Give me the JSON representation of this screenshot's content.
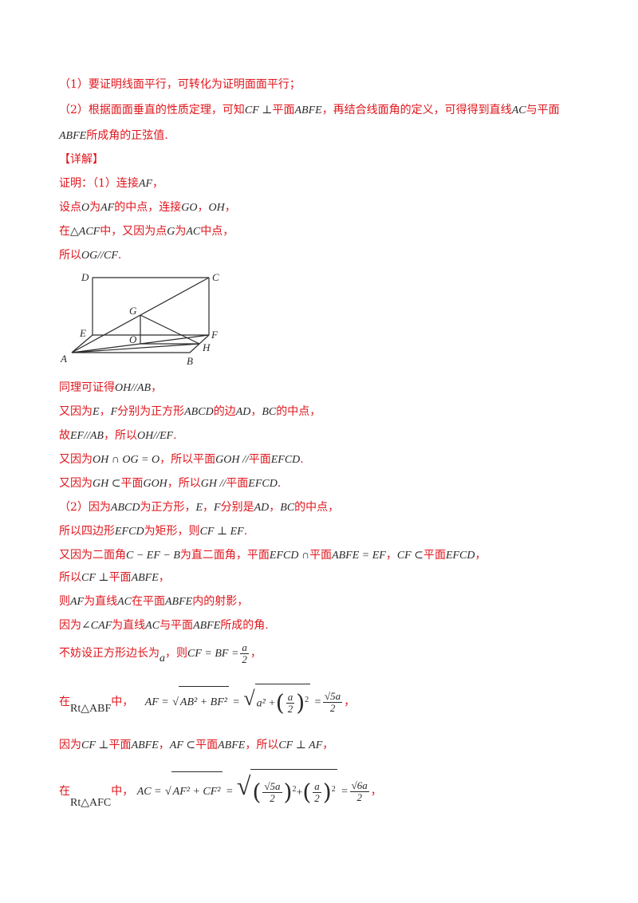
{
  "lines": {
    "l1": "（1）要证明线面平行，可转化为证明面面平行；",
    "l2a": "（2）根据面面垂直的性质定理，可知",
    "l2b": "CF ⊥",
    "l2c": "平面",
    "l2d": "ABFE",
    "l2e": "，再结合线面角的定义，可得得到直线",
    "l2f": "AC",
    "l2g": "与平面",
    "l3a": "ABFE",
    "l3b": "所成角的正弦值.",
    "l4": "【详解】",
    "l5a": "证明：（1）连接",
    "l5b": "AF",
    "l5c": "，",
    "l6a": "设点",
    "l6b": "O",
    "l6c": "为",
    "l6d": "AF",
    "l6e": "的中点，连接",
    "l6f": "GO",
    "l6g": "，",
    "l6h": "OH",
    "l6i": "，",
    "l7a": "在",
    "l7b": "△ACF",
    "l7c": "中，又因为点",
    "l7d": "G",
    "l7e": "为",
    "l7f": "AC",
    "l7g": "中点，",
    "l8a": "所以",
    "l8b": "OG//CF",
    "l8c": ".",
    "l9a": "同理可证得",
    "l9b": "OH//AB",
    "l9c": "，",
    "l10a": "又因为",
    "l10b": "E",
    "l10c": "，",
    "l10d": "F",
    "l10e": "分别为正方形",
    "l10f": "ABCD",
    "l10g": "的边",
    "l10h": "AD",
    "l10i": "，",
    "l10j": "BC",
    "l10k": "的中点，",
    "l11a": "故",
    "l11b": "EF//AB",
    "l11c": "，所以",
    "l11d": "OH//EF",
    "l11e": ".",
    "l12a": "又因为",
    "l12b": "OH ∩ OG = O",
    "l12c": "，所以平面",
    "l12d": "GOH //",
    "l12e": "平面",
    "l12f": "EFCD",
    "l12g": ".",
    "l13a": "又因为",
    "l13b": "GH ⊂",
    "l13c": "平面",
    "l13d": "GOH",
    "l13e": "，所以",
    "l13f": "GH //",
    "l13g": "平面",
    "l13h": "EFCD",
    "l13i": ".",
    "l14a": "（2）因为",
    "l14b": "ABCD",
    "l14c": "为正方形，",
    "l14d": "E",
    "l14e": "，",
    "l14f": "F",
    "l14g": "分别是",
    "l14h": "AD",
    "l14i": "，",
    "l14j": "BC",
    "l14k": "的中点，",
    "l15a": "所以四边形",
    "l15b": "EFCD",
    "l15c": "为矩形，则",
    "l15d": "CF ⊥ EF",
    "l15e": ".",
    "l16a": "又因为二面角",
    "l16b": "C − EF − B",
    "l16c": "为直二面角，平面",
    "l16d": "EFCD ∩",
    "l16e": "平面",
    "l16f": "ABFE = EF",
    "l16g": "，",
    "l16h": "CF ⊂",
    "l16i": "平面",
    "l16j": "EFCD",
    "l16k": "，",
    "l17a": "所以",
    "l17b": "CF ⊥",
    "l17c": "平面",
    "l17d": "ABFE",
    "l17e": "，",
    "l18a": "则",
    "l18b": "AF",
    "l18c": "为直线",
    "l18d": "AC",
    "l18e": "在平面",
    "l18f": "ABFE",
    "l18g": "内的射影，",
    "l19a": "因为",
    "l19b": "∠CAF",
    "l19c": "为直线",
    "l19d": "AC",
    "l19e": "与平面",
    "l19f": "ABFE",
    "l19g": "所成的角.",
    "l20a": "不妨设正方形边长为",
    "l20b": "a",
    "l20c": "，则",
    "l20d": "CF = BF =",
    "l20num": "a",
    "l20den": "2",
    "l20e": "，",
    "l21a": "在",
    "l21b": "Rt△ABF",
    "l21c": "中，",
    "l21d": "AF =",
    "l21e": "AB² + BF²",
    "l21f": "=",
    "l21g": "a² +",
    "l21num1": "a",
    "l21den1": "2",
    "l21h": "2",
    "l21i": "=",
    "l21num2": "√5a",
    "l21den2": "2",
    "l21j": "，",
    "l22a": "因为",
    "l22b": "CF ⊥",
    "l22c": "平面",
    "l22d": "ABFE",
    "l22e": "，",
    "l22f": "AF ⊂",
    "l22g": "平面",
    "l22h": "ABFE",
    "l22i": "，所以",
    "l22j": "CF ⊥ AF",
    "l22k": "，",
    "l23a": "在",
    "l23b": "Rt△AFC",
    "l23c": "中，",
    "l23d": "AC =",
    "l23e": "AF² + CF²",
    "l23f": "=",
    "l23num1": "√5a",
    "l23den1": "2",
    "l23g": "2",
    "l23h": "+",
    "l23num2": "a",
    "l23den2": "2",
    "l23i": "2",
    "l23j": "=",
    "l23num3": "√6a",
    "l23den3": "2",
    "l23k": "，"
  },
  "figure": {
    "labels": {
      "D": "D",
      "C": "C",
      "G": "G",
      "E": "E",
      "F": "F",
      "O": "O",
      "H": "H",
      "A": "A",
      "B": "B"
    }
  }
}
